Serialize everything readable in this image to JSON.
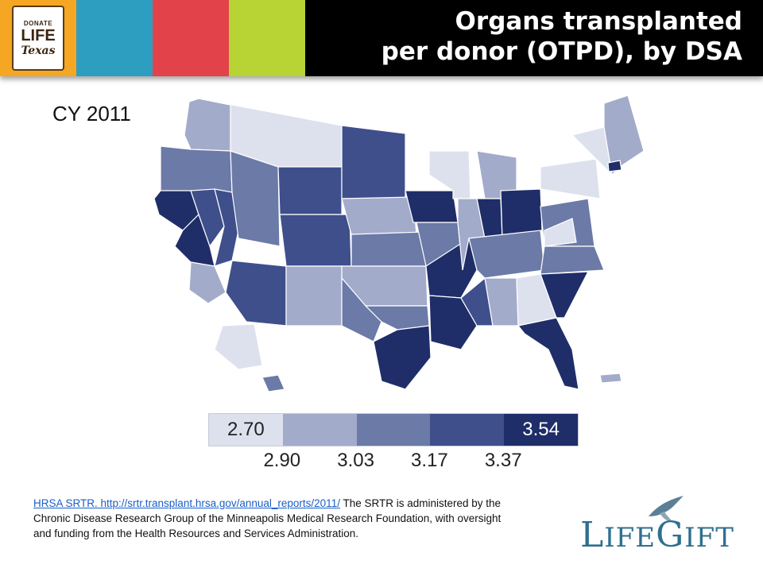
{
  "header": {
    "logo": {
      "line1": "DONATE",
      "line2": "LIFE",
      "line3": "Texas",
      "text_lines": [
        "DONATE",
        "LIFE",
        "Texas"
      ]
    },
    "title_line1": "Organs transplanted",
    "title_line2": "per donor (OTPD), by DSA",
    "tile_colors": [
      "#f5a623",
      "#2e9ec0",
      "#e2434b",
      "#b7d334"
    ]
  },
  "map": {
    "year_label": "CY 2011",
    "color_scale": [
      "#dde1ee",
      "#a3abcb",
      "#6b7aa7",
      "#3f4f8c",
      "#1f2e68"
    ]
  },
  "legend": {
    "swatches": [
      {
        "label": "2.70",
        "color": "#dde1ee",
        "text_color": "#222222"
      },
      {
        "label": "",
        "color": "#a3abcb",
        "text_color": "#222222"
      },
      {
        "label": "",
        "color": "#6b7aa7",
        "text_color": "#ffffff"
      },
      {
        "label": "",
        "color": "#3f4f8c",
        "text_color": "#ffffff"
      },
      {
        "label": "3.54",
        "color": "#1f2e68",
        "text_color": "#ffffff"
      }
    ],
    "breaks": [
      "2.90",
      "3.03",
      "3.17",
      "3.37"
    ]
  },
  "citation": {
    "link_text": "HRSA SRTR.    http://srtr.transplant.hrsa.gov/annual_reports/2011/",
    "body": "The SRTR is administered by the Chronic Disease Research Group of the Minneapolis Medical Research Foundation, with oversight and funding from the Health Resources and Services Administration."
  },
  "footer_logo": {
    "text": "LIFEGIFT",
    "text_parts": [
      "L",
      "IFE",
      "G",
      "IFT"
    ]
  }
}
